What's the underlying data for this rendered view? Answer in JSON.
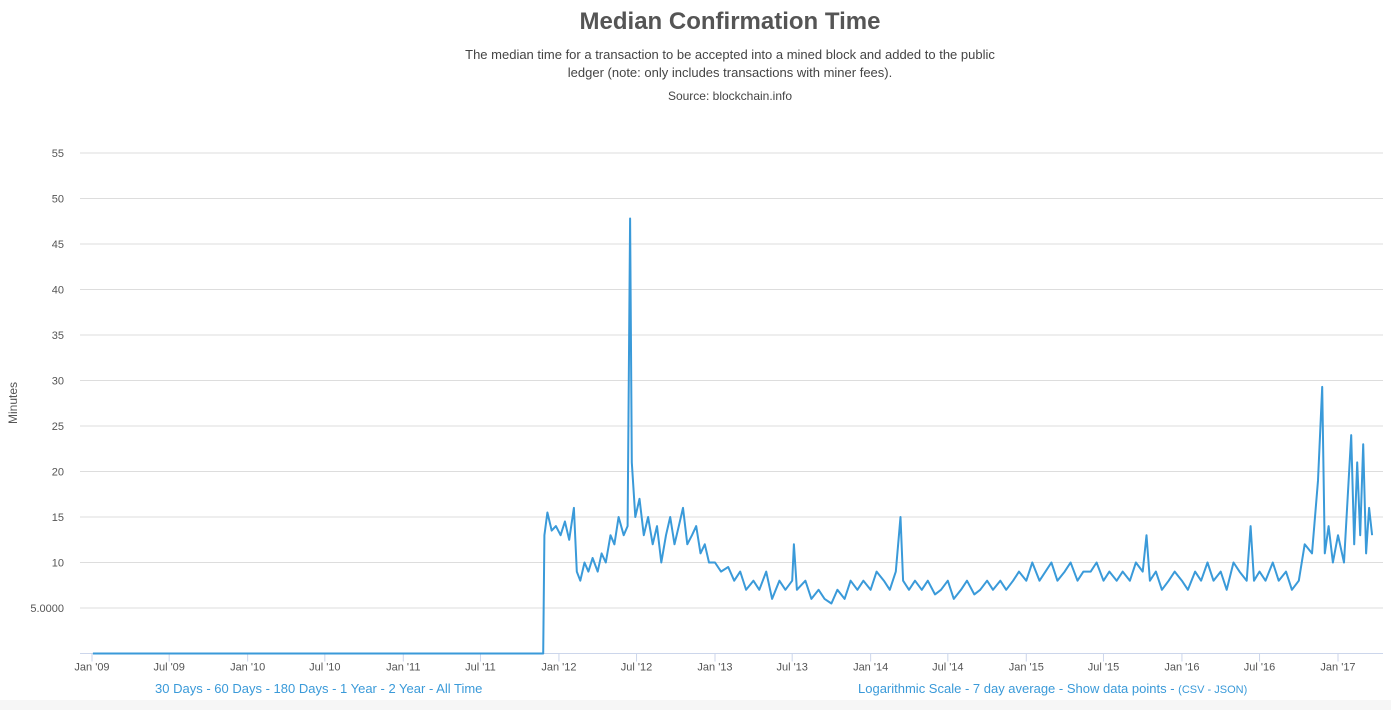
{
  "chart_data": {
    "type": "line",
    "title": "Median Confirmation Time",
    "subtitle": "The median time for a transaction to be accepted into a mined block and added to the public ledger (note: only includes transactions with miner fees).",
    "source": "Source: blockchain.info",
    "ylabel": "Minutes",
    "xlabel": "",
    "ylim": [
      0,
      55
    ],
    "yticks": [
      5,
      10,
      15,
      20,
      25,
      30,
      35,
      40,
      45,
      50,
      55
    ],
    "ytick_labels": [
      "5.0000",
      "10",
      "15",
      "20",
      "25",
      "30",
      "35",
      "40",
      "45",
      "50",
      "55"
    ],
    "xticks": [
      "2009-01-01",
      "2009-07-01",
      "2010-01-01",
      "2010-07-01",
      "2011-01-01",
      "2011-07-01",
      "2012-01-01",
      "2012-07-01",
      "2013-01-01",
      "2013-07-01",
      "2014-01-01",
      "2014-07-01",
      "2015-01-01",
      "2015-07-01",
      "2016-01-01",
      "2016-07-01",
      "2017-01-01"
    ],
    "xtick_labels": [
      "Jan '09",
      "Jul '09",
      "Jan '10",
      "Jul '10",
      "Jan '11",
      "Jul '11",
      "Jan '12",
      "Jul '12",
      "Jan '13",
      "Jul '13",
      "Jan '14",
      "Jul '14",
      "Jan '15",
      "Jul '15",
      "Jan '16",
      "Jul '16",
      "Jan '17"
    ],
    "grid": true,
    "color": "#3a9ad9",
    "series": [
      {
        "points": [
          [
            "2009-01-03",
            0
          ],
          [
            "2011-11-25",
            0
          ],
          [
            "2011-11-28",
            13
          ],
          [
            "2011-12-05",
            15.5
          ],
          [
            "2011-12-15",
            13.5
          ],
          [
            "2011-12-25",
            14
          ],
          [
            "2012-01-05",
            13
          ],
          [
            "2012-01-15",
            14.5
          ],
          [
            "2012-01-25",
            12.5
          ],
          [
            "2012-02-05",
            16
          ],
          [
            "2012-02-12",
            9
          ],
          [
            "2012-02-20",
            8
          ],
          [
            "2012-03-01",
            10
          ],
          [
            "2012-03-10",
            9
          ],
          [
            "2012-03-20",
            10.5
          ],
          [
            "2012-04-01",
            9
          ],
          [
            "2012-04-10",
            11
          ],
          [
            "2012-04-20",
            10
          ],
          [
            "2012-05-01",
            13
          ],
          [
            "2012-05-10",
            12
          ],
          [
            "2012-05-20",
            15
          ],
          [
            "2012-06-01",
            13
          ],
          [
            "2012-06-10",
            14
          ],
          [
            "2012-06-16",
            47.8
          ],
          [
            "2012-06-20",
            21
          ],
          [
            "2012-06-28",
            15
          ],
          [
            "2012-07-08",
            17
          ],
          [
            "2012-07-18",
            13
          ],
          [
            "2012-07-28",
            15
          ],
          [
            "2012-08-08",
            12
          ],
          [
            "2012-08-18",
            14
          ],
          [
            "2012-08-28",
            10
          ],
          [
            "2012-09-08",
            13
          ],
          [
            "2012-09-18",
            15
          ],
          [
            "2012-09-28",
            12
          ],
          [
            "2012-10-08",
            14
          ],
          [
            "2012-10-18",
            16
          ],
          [
            "2012-10-28",
            12
          ],
          [
            "2012-11-08",
            13
          ],
          [
            "2012-11-18",
            14
          ],
          [
            "2012-11-28",
            11
          ],
          [
            "2012-12-08",
            12
          ],
          [
            "2012-12-18",
            10
          ],
          [
            "2013-01-01",
            10
          ],
          [
            "2013-01-15",
            9
          ],
          [
            "2013-02-01",
            9.5
          ],
          [
            "2013-02-15",
            8
          ],
          [
            "2013-03-01",
            9
          ],
          [
            "2013-03-15",
            7
          ],
          [
            "2013-04-01",
            8
          ],
          [
            "2013-04-15",
            7
          ],
          [
            "2013-05-01",
            9
          ],
          [
            "2013-05-15",
            6
          ],
          [
            "2013-06-01",
            8
          ],
          [
            "2013-06-15",
            7
          ],
          [
            "2013-07-01",
            8
          ],
          [
            "2013-07-05",
            12
          ],
          [
            "2013-07-12",
            7
          ],
          [
            "2013-08-01",
            8
          ],
          [
            "2013-08-15",
            6
          ],
          [
            "2013-09-01",
            7
          ],
          [
            "2013-09-15",
            6
          ],
          [
            "2013-10-01",
            5.5
          ],
          [
            "2013-10-15",
            7
          ],
          [
            "2013-11-01",
            6
          ],
          [
            "2013-11-15",
            8
          ],
          [
            "2013-12-01",
            7
          ],
          [
            "2013-12-15",
            8
          ],
          [
            "2014-01-01",
            7
          ],
          [
            "2014-01-15",
            9
          ],
          [
            "2014-02-01",
            8
          ],
          [
            "2014-02-15",
            7
          ],
          [
            "2014-03-01",
            9
          ],
          [
            "2014-03-12",
            15
          ],
          [
            "2014-03-18",
            8
          ],
          [
            "2014-04-01",
            7
          ],
          [
            "2014-04-15",
            8
          ],
          [
            "2014-05-01",
            7
          ],
          [
            "2014-05-15",
            8
          ],
          [
            "2014-06-01",
            6.5
          ],
          [
            "2014-06-15",
            7
          ],
          [
            "2014-07-01",
            8
          ],
          [
            "2014-07-15",
            6
          ],
          [
            "2014-08-01",
            7
          ],
          [
            "2014-08-15",
            8
          ],
          [
            "2014-09-01",
            6.5
          ],
          [
            "2014-09-15",
            7
          ],
          [
            "2014-10-01",
            8
          ],
          [
            "2014-10-15",
            7
          ],
          [
            "2014-11-01",
            8
          ],
          [
            "2014-11-15",
            7
          ],
          [
            "2014-12-01",
            8
          ],
          [
            "2014-12-15",
            9
          ],
          [
            "2015-01-01",
            8
          ],
          [
            "2015-01-15",
            10
          ],
          [
            "2015-02-01",
            8
          ],
          [
            "2015-02-15",
            9
          ],
          [
            "2015-03-01",
            10
          ],
          [
            "2015-03-15",
            8
          ],
          [
            "2015-04-01",
            9
          ],
          [
            "2015-04-15",
            10
          ],
          [
            "2015-05-01",
            8
          ],
          [
            "2015-05-15",
            9
          ],
          [
            "2015-06-01",
            9
          ],
          [
            "2015-06-15",
            10
          ],
          [
            "2015-07-01",
            8
          ],
          [
            "2015-07-15",
            9
          ],
          [
            "2015-08-01",
            8
          ],
          [
            "2015-08-15",
            9
          ],
          [
            "2015-09-01",
            8
          ],
          [
            "2015-09-15",
            10
          ],
          [
            "2015-10-01",
            9
          ],
          [
            "2015-10-10",
            13
          ],
          [
            "2015-10-18",
            8
          ],
          [
            "2015-11-01",
            9
          ],
          [
            "2015-11-15",
            7
          ],
          [
            "2015-12-01",
            8
          ],
          [
            "2015-12-15",
            9
          ],
          [
            "2016-01-01",
            8
          ],
          [
            "2016-01-15",
            7
          ],
          [
            "2016-02-01",
            9
          ],
          [
            "2016-02-15",
            8
          ],
          [
            "2016-03-01",
            10
          ],
          [
            "2016-03-15",
            8
          ],
          [
            "2016-04-01",
            9
          ],
          [
            "2016-04-15",
            7
          ],
          [
            "2016-05-01",
            10
          ],
          [
            "2016-05-15",
            9
          ],
          [
            "2016-06-01",
            8
          ],
          [
            "2016-06-10",
            14
          ],
          [
            "2016-06-18",
            8
          ],
          [
            "2016-07-01",
            9
          ],
          [
            "2016-07-15",
            8
          ],
          [
            "2016-08-01",
            10
          ],
          [
            "2016-08-15",
            8
          ],
          [
            "2016-09-01",
            9
          ],
          [
            "2016-09-15",
            7
          ],
          [
            "2016-10-01",
            8
          ],
          [
            "2016-10-15",
            12
          ],
          [
            "2016-11-01",
            11
          ],
          [
            "2016-11-15",
            19
          ],
          [
            "2016-11-25",
            29.3
          ],
          [
            "2016-12-01",
            11
          ],
          [
            "2016-12-10",
            14
          ],
          [
            "2016-12-20",
            10
          ],
          [
            "2017-01-01",
            13
          ],
          [
            "2017-01-15",
            10
          ],
          [
            "2017-02-01",
            24
          ],
          [
            "2017-02-08",
            12
          ],
          [
            "2017-02-15",
            21
          ],
          [
            "2017-02-22",
            13
          ],
          [
            "2017-03-01",
            23
          ],
          [
            "2017-03-08",
            11
          ],
          [
            "2017-03-15",
            16
          ],
          [
            "2017-03-22",
            13
          ]
        ]
      }
    ]
  },
  "links_left": [
    "30 Days",
    "60 Days",
    "180 Days",
    "1 Year",
    "2 Year",
    "All Time"
  ],
  "links_right": {
    "log": "Logarithmic Scale",
    "avg": "7 day average",
    "points": "Show data points",
    "csv": "CSV",
    "json": "JSON"
  }
}
